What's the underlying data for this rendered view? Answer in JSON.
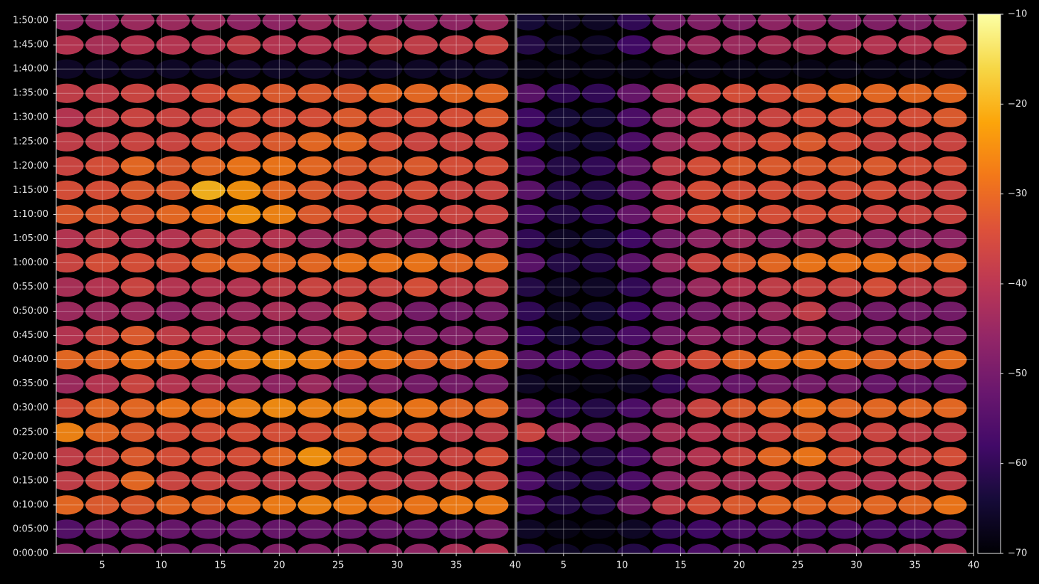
{
  "chart_data": [
    {
      "type": "heatmap",
      "x": [
        2,
        5,
        8,
        11,
        14,
        17,
        20,
        23,
        26,
        29,
        32,
        35,
        38
      ],
      "y": [
        0,
        300,
        600,
        900,
        1200,
        1500,
        1800,
        2100,
        2400,
        2700,
        3000,
        3300,
        3600,
        3900,
        4200,
        4500,
        4800,
        5100,
        5400,
        5700,
        6000,
        6300,
        6600
      ],
      "values": [
        [
          -48,
          -50,
          -48,
          -50,
          -50,
          -50,
          -48,
          -48,
          -48,
          -46,
          -46,
          -42,
          -40
        ],
        [
          -55,
          -52,
          -52,
          -52,
          -52,
          -52,
          -52,
          -52,
          -52,
          -52,
          -52,
          -52,
          -50
        ],
        [
          -30,
          -32,
          -32,
          -30,
          -30,
          -28,
          -27,
          -26,
          -27,
          -28,
          -28,
          -27,
          -27
        ],
        [
          -38,
          -36,
          -30,
          -36,
          -36,
          -38,
          -38,
          -38,
          -38,
          -38,
          -38,
          -36,
          -36
        ],
        [
          -38,
          -36,
          -32,
          -34,
          -34,
          -34,
          -30,
          -24,
          -30,
          -34,
          -36,
          -36,
          -34
        ],
        [
          -26,
          -30,
          -32,
          -34,
          -34,
          -34,
          -34,
          -34,
          -32,
          -34,
          -34,
          -38,
          -38
        ],
        [
          -34,
          -30,
          -30,
          -28,
          -28,
          -26,
          -25,
          -26,
          -26,
          -27,
          -28,
          -30,
          -30
        ],
        [
          -44,
          -40,
          -36,
          -40,
          -42,
          -44,
          -46,
          -44,
          -48,
          -48,
          -50,
          -50,
          -50
        ],
        [
          -30,
          -30,
          -28,
          -28,
          -27,
          -26,
          -25,
          -26,
          -28,
          -28,
          -30,
          -30,
          -29
        ],
        [
          -40,
          -36,
          -32,
          -38,
          -40,
          -42,
          -44,
          -44,
          -42,
          -46,
          -48,
          -48,
          -48
        ],
        [
          -44,
          -44,
          -44,
          -46,
          -44,
          -44,
          -42,
          -44,
          -38,
          -46,
          -50,
          -50,
          -50
        ],
        [
          -42,
          -40,
          -36,
          -40,
          -40,
          -40,
          -38,
          -36,
          -36,
          -36,
          -34,
          -38,
          -38
        ],
        [
          -36,
          -34,
          -34,
          -34,
          -30,
          -30,
          -30,
          -30,
          -28,
          -28,
          -28,
          -30,
          -30
        ],
        [
          -40,
          -38,
          -40,
          -40,
          -38,
          -40,
          -40,
          -44,
          -44,
          -44,
          -46,
          -46,
          -46
        ],
        [
          -32,
          -32,
          -32,
          -30,
          -28,
          -24,
          -26,
          -32,
          -34,
          -34,
          -36,
          -36,
          -36
        ],
        [
          -34,
          -34,
          -32,
          -32,
          -20,
          -24,
          -30,
          -32,
          -34,
          -34,
          -34,
          -36,
          -36
        ],
        [
          -36,
          -34,
          -30,
          -32,
          -30,
          -28,
          -28,
          -30,
          -32,
          -32,
          -32,
          -34,
          -34
        ],
        [
          -38,
          -38,
          -36,
          -36,
          -34,
          -34,
          -32,
          -30,
          -30,
          -34,
          -36,
          -36,
          -36
        ],
        [
          -40,
          -38,
          -36,
          -36,
          -36,
          -34,
          -34,
          -34,
          -32,
          -34,
          -34,
          -34,
          -32
        ],
        [
          -38,
          -38,
          -36,
          -36,
          -34,
          -32,
          -32,
          -32,
          -32,
          -30,
          -30,
          -30,
          -30
        ],
        [
          -66,
          -66,
          -66,
          -66,
          -66,
          -66,
          -66,
          -66,
          -66,
          -66,
          -66,
          -66,
          -66
        ],
        [
          -40,
          -42,
          -40,
          -40,
          -40,
          -38,
          -40,
          -40,
          -40,
          -38,
          -38,
          -38,
          -36
        ],
        [
          -46,
          -46,
          -44,
          -44,
          -44,
          -46,
          -46,
          -44,
          -44,
          -46,
          -46,
          -46,
          -44
        ]
      ],
      "xlim": [
        1.1,
        40
      ],
      "xticks": [
        5,
        10,
        15,
        20,
        25,
        30,
        35,
        40
      ],
      "ylim": [
        0,
        6680
      ],
      "yticks": [
        {
          "value": 0,
          "label": "0:00:00"
        },
        {
          "value": 300,
          "label": "0:05:00"
        },
        {
          "value": 600,
          "label": "0:10:00"
        },
        {
          "value": 900,
          "label": "0:15:00"
        },
        {
          "value": 1200,
          "label": "0:20:00"
        },
        {
          "value": 1500,
          "label": "0:25:00"
        },
        {
          "value": 1800,
          "label": "0:30:00"
        },
        {
          "value": 2100,
          "label": "0:35:00"
        },
        {
          "value": 2400,
          "label": "0:40:00"
        },
        {
          "value": 2700,
          "label": "0:45:00"
        },
        {
          "value": 3000,
          "label": "0:50:00"
        },
        {
          "value": 3300,
          "label": "0:55:00"
        },
        {
          "value": 3600,
          "label": "1:00:00"
        },
        {
          "value": 3900,
          "label": "1:05:00"
        },
        {
          "value": 4200,
          "label": "1:10:00"
        },
        {
          "value": 4500,
          "label": "1:15:00"
        },
        {
          "value": 4800,
          "label": "1:20:00"
        },
        {
          "value": 5100,
          "label": "1:25:00"
        },
        {
          "value": 5400,
          "label": "1:30:00"
        },
        {
          "value": 5700,
          "label": "1:35:00"
        },
        {
          "value": 6000,
          "label": "1:40:00"
        },
        {
          "value": 6300,
          "label": "1:45:00"
        },
        {
          "value": 6600,
          "label": "1:50:00"
        }
      ],
      "grid": true,
      "colormap": "inferno"
    },
    {
      "type": "heatmap",
      "x": [
        2,
        5,
        8,
        11,
        14,
        17,
        20,
        23,
        26,
        29,
        32,
        35,
        38
      ],
      "y": [
        0,
        300,
        600,
        900,
        1200,
        1500,
        1800,
        2100,
        2400,
        2700,
        3000,
        3300,
        3600,
        3900,
        4200,
        4500,
        4800,
        5100,
        5400,
        5700,
        6000,
        6300,
        6600
      ],
      "values": [
        [
          -62,
          -66,
          -66,
          -62,
          -58,
          -56,
          -54,
          -52,
          -50,
          -48,
          -48,
          -44,
          -42
        ],
        [
          -66,
          -68,
          -68,
          -66,
          -60,
          -58,
          -56,
          -56,
          -56,
          -56,
          -56,
          -56,
          -54
        ],
        [
          -56,
          -62,
          -62,
          -50,
          -38,
          -34,
          -32,
          -30,
          -30,
          -30,
          -30,
          -30,
          -28
        ],
        [
          -56,
          -62,
          -62,
          -56,
          -46,
          -42,
          -42,
          -40,
          -40,
          -40,
          -40,
          -38,
          -38
        ],
        [
          -58,
          -62,
          -62,
          -56,
          -44,
          -40,
          -36,
          -30,
          -28,
          -34,
          -36,
          -36,
          -34
        ],
        [
          -36,
          -46,
          -50,
          -48,
          -42,
          -40,
          -38,
          -36,
          -32,
          -36,
          -36,
          -38,
          -38
        ],
        [
          -52,
          -60,
          -62,
          -56,
          -46,
          -36,
          -32,
          -30,
          -28,
          -30,
          -30,
          -30,
          -30
        ],
        [
          -66,
          -68,
          -68,
          -66,
          -60,
          -52,
          -52,
          -50,
          -50,
          -50,
          -52,
          -52,
          -52
        ],
        [
          -54,
          -56,
          -56,
          -50,
          -40,
          -34,
          -30,
          -28,
          -28,
          -28,
          -30,
          -30,
          -29
        ],
        [
          -58,
          -64,
          -62,
          -56,
          -50,
          -46,
          -46,
          -46,
          -44,
          -46,
          -48,
          -48,
          -48
        ],
        [
          -60,
          -66,
          -64,
          -58,
          -52,
          -50,
          -46,
          -44,
          -38,
          -48,
          -50,
          -50,
          -50
        ],
        [
          -62,
          -66,
          -66,
          -60,
          -50,
          -44,
          -40,
          -38,
          -36,
          -36,
          -34,
          -38,
          -38
        ],
        [
          -54,
          -62,
          -62,
          -54,
          -44,
          -36,
          -32,
          -30,
          -28,
          -28,
          -28,
          -30,
          -30
        ],
        [
          -60,
          -66,
          -64,
          -58,
          -50,
          -46,
          -44,
          -46,
          -44,
          -44,
          -46,
          -46,
          -46
        ],
        [
          -56,
          -62,
          -60,
          -52,
          -40,
          -34,
          -32,
          -34,
          -34,
          -34,
          -36,
          -36,
          -36
        ],
        [
          -54,
          -62,
          -62,
          -54,
          -40,
          -34,
          -34,
          -34,
          -34,
          -34,
          -34,
          -36,
          -36
        ],
        [
          -56,
          -62,
          -60,
          -52,
          -38,
          -34,
          -32,
          -32,
          -32,
          -32,
          -32,
          -34,
          -34
        ],
        [
          -58,
          -64,
          -64,
          -56,
          -44,
          -40,
          -36,
          -34,
          -32,
          -34,
          -36,
          -36,
          -36
        ],
        [
          -58,
          -64,
          -64,
          -56,
          -44,
          -40,
          -38,
          -36,
          -34,
          -34,
          -34,
          -34,
          -32
        ],
        [
          -54,
          -60,
          -60,
          -52,
          -42,
          -36,
          -34,
          -34,
          -32,
          -30,
          -30,
          -30,
          -30
        ],
        [
          -68,
          -68,
          -68,
          -68,
          -68,
          -68,
          -68,
          -68,
          -68,
          -68,
          -68,
          -68,
          -68
        ],
        [
          -62,
          -66,
          -66,
          -58,
          -46,
          -44,
          -44,
          -42,
          -42,
          -40,
          -40,
          -40,
          -38
        ],
        [
          -64,
          -66,
          -66,
          -60,
          -50,
          -48,
          -48,
          -46,
          -46,
          -48,
          -48,
          -48,
          -46
        ]
      ],
      "xlim": [
        1,
        40
      ],
      "xticks": [
        5,
        10,
        15,
        20,
        25,
        30,
        35,
        40
      ],
      "ylim": [
        0,
        6680
      ],
      "sharey": true,
      "grid": true,
      "colormap": "inferno"
    }
  ],
  "colorbar": {
    "lim": [
      -70,
      -10
    ],
    "ticks": [
      {
        "value": -10,
        "label": "−10"
      },
      {
        "value": -20,
        "label": "−20"
      },
      {
        "value": -30,
        "label": "−30"
      },
      {
        "value": -40,
        "label": "−40"
      },
      {
        "value": -50,
        "label": "−50"
      },
      {
        "value": -60,
        "label": "−60"
      },
      {
        "value": -70,
        "label": "−70"
      }
    ]
  }
}
